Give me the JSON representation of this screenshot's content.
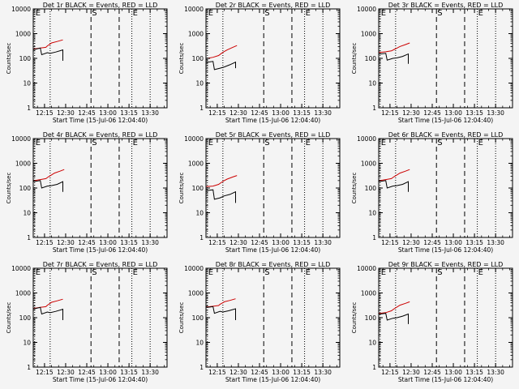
{
  "chart_data": [
    {
      "type": "line",
      "title": "Det 1r BLACK = Events, RED = LLD",
      "xlabel": "Start Time (15-Jul-06 12:04:40)",
      "ylabel": "Counts/sec",
      "xlim": [
        "12:07",
        "13:42"
      ],
      "ylim": [
        1,
        10000
      ],
      "yscale": "log",
      "xticks": [
        "12:15",
        "12:30",
        "12:45",
        "13:00",
        "13:15",
        "13:30"
      ],
      "yticks": [
        "1",
        "10",
        "100",
        "1000",
        "10000"
      ],
      "markers": [
        {
          "label": "E",
          "time": "12:08",
          "style": "dotted"
        },
        {
          "label": "",
          "time": "12:19",
          "style": "dotted"
        },
        {
          "label": "S",
          "time": "12:48",
          "style": "dashed"
        },
        {
          "label": "",
          "time": "13:08",
          "style": "dashed"
        },
        {
          "label": "E",
          "time": "13:17",
          "style": "dotted"
        },
        {
          "label": "",
          "time": "13:30",
          "style": "dotted"
        }
      ],
      "series": [
        {
          "color": "#cc0000",
          "x": [
            "12:04",
            "12:08",
            "12:12",
            "12:16",
            "12:17",
            "12:19",
            "12:20",
            "12:24",
            "12:28"
          ],
          "y": [
            250,
            240,
            260,
            280,
            320,
            380,
            420,
            480,
            560
          ]
        },
        {
          "color": "#000000",
          "x": [
            "12:04",
            "12:08",
            "12:12",
            "12:13",
            "12:17",
            "12:19",
            "12:23",
            "12:28",
            "12:28"
          ],
          "y": [
            240,
            230,
            260,
            140,
            170,
            160,
            180,
            220,
            80
          ]
        }
      ]
    },
    {
      "type": "line",
      "title": "Det 2r BLACK = Events, RED = LLD",
      "xlabel": "Start Time (15-Jul-06 12:04:40)",
      "ylabel": "Counts/sec",
      "xlim": [
        "12:07",
        "13:42"
      ],
      "ylim": [
        1,
        10000
      ],
      "yscale": "log",
      "xticks": [
        "12:15",
        "12:30",
        "12:45",
        "13:00",
        "13:15",
        "13:30"
      ],
      "yticks": [
        "1",
        "10",
        "100",
        "1000",
        "10000"
      ],
      "markers": [
        {
          "label": "E",
          "time": "12:08",
          "style": "dotted"
        },
        {
          "label": "",
          "time": "12:19",
          "style": "dotted"
        },
        {
          "label": "S",
          "time": "12:48",
          "style": "dashed"
        },
        {
          "label": "",
          "time": "13:08",
          "style": "dashed"
        },
        {
          "label": "E",
          "time": "13:17",
          "style": "dotted"
        },
        {
          "label": "",
          "time": "13:30",
          "style": "dotted"
        }
      ],
      "series": [
        {
          "color": "#cc0000",
          "x": [
            "12:04",
            "12:08",
            "12:12",
            "12:16",
            "12:18",
            "12:20",
            "12:22",
            "12:26",
            "12:29"
          ],
          "y": [
            100,
            100,
            110,
            130,
            160,
            190,
            220,
            280,
            330
          ]
        },
        {
          "color": "#000000",
          "x": [
            "12:04",
            "12:08",
            "12:12",
            "12:13",
            "12:17",
            "12:20",
            "12:24",
            "12:28",
            "12:28"
          ],
          "y": [
            70,
            70,
            75,
            35,
            40,
            45,
            55,
            70,
            40
          ]
        }
      ]
    },
    {
      "type": "line",
      "title": "Det 3r BLACK = Events, RED = LLD",
      "xlabel": "Start Time (15-Jul-06 12:04:40)",
      "ylabel": "Counts/sec",
      "xlim": [
        "12:07",
        "13:42"
      ],
      "ylim": [
        1,
        10000
      ],
      "yscale": "log",
      "xticks": [
        "12:15",
        "12:30",
        "12:45",
        "13:00",
        "13:15",
        "13:30"
      ],
      "yticks": [
        "1",
        "10",
        "100",
        "1000",
        "10000"
      ],
      "markers": [
        {
          "label": "E",
          "time": "12:08",
          "style": "dotted"
        },
        {
          "label": "",
          "time": "12:19",
          "style": "dotted"
        },
        {
          "label": "S",
          "time": "12:48",
          "style": "dashed"
        },
        {
          "label": "",
          "time": "13:08",
          "style": "dashed"
        },
        {
          "label": "E",
          "time": "13:17",
          "style": "dotted"
        },
        {
          "label": "",
          "time": "13:30",
          "style": "dotted"
        }
      ],
      "series": [
        {
          "color": "#cc0000",
          "x": [
            "12:04",
            "12:08",
            "12:12",
            "12:16",
            "12:18",
            "12:20",
            "12:22",
            "12:26",
            "12:29"
          ],
          "y": [
            180,
            175,
            185,
            200,
            230,
            260,
            300,
            360,
            420
          ]
        },
        {
          "color": "#000000",
          "x": [
            "12:04",
            "12:08",
            "12:12",
            "12:13",
            "12:17",
            "12:20",
            "12:24",
            "12:28",
            "12:28"
          ],
          "y": [
            150,
            150,
            160,
            85,
            100,
            105,
            120,
            150,
            60
          ]
        }
      ]
    },
    {
      "type": "line",
      "title": "Det 4r BLACK = Events, RED = LLD",
      "xlabel": "Start Time (15-Jul-06 12:04:40)",
      "ylabel": "Counts/sec",
      "xlim": [
        "12:07",
        "13:42"
      ],
      "ylim": [
        1,
        10000
      ],
      "yscale": "log",
      "xticks": [
        "12:15",
        "12:30",
        "12:45",
        "13:00",
        "13:15",
        "13:30"
      ],
      "yticks": [
        "1",
        "10",
        "100",
        "1000",
        "10000"
      ],
      "markers": [
        {
          "label": "E",
          "time": "12:08",
          "style": "dotted"
        },
        {
          "label": "",
          "time": "12:19",
          "style": "dotted"
        },
        {
          "label": "S",
          "time": "12:48",
          "style": "dashed"
        },
        {
          "label": "",
          "time": "13:08",
          "style": "dashed"
        },
        {
          "label": "E",
          "time": "13:17",
          "style": "dotted"
        },
        {
          "label": "",
          "time": "13:30",
          "style": "dotted"
        }
      ],
      "series": [
        {
          "color": "#cc0000",
          "x": [
            "12:04",
            "12:08",
            "12:12",
            "12:16",
            "12:18",
            "12:20",
            "12:22",
            "12:26",
            "12:29"
          ],
          "y": [
            210,
            200,
            220,
            240,
            290,
            340,
            400,
            480,
            560
          ]
        },
        {
          "color": "#000000",
          "x": [
            "12:04",
            "12:08",
            "12:12",
            "12:13",
            "12:17",
            "12:20",
            "12:24",
            "12:28",
            "12:28"
          ],
          "y": [
            190,
            185,
            200,
            100,
            120,
            125,
            140,
            180,
            70
          ]
        }
      ]
    },
    {
      "type": "line",
      "title": "Det 5r BLACK = Events, RED = LLD",
      "xlabel": "Start Time (15-Jul-06 12:04:40)",
      "ylabel": "Counts/sec",
      "xlim": [
        "12:07",
        "13:42"
      ],
      "ylim": [
        1,
        10000
      ],
      "yscale": "log",
      "xticks": [
        "12:15",
        "12:30",
        "12:45",
        "13:00",
        "13:15",
        "13:30"
      ],
      "yticks": [
        "1",
        "10",
        "100",
        "1000",
        "10000"
      ],
      "markers": [
        {
          "label": "E",
          "time": "12:08",
          "style": "dotted"
        },
        {
          "label": "",
          "time": "12:19",
          "style": "dotted"
        },
        {
          "label": "S",
          "time": "12:48",
          "style": "dashed"
        },
        {
          "label": "",
          "time": "13:08",
          "style": "dashed"
        },
        {
          "label": "E",
          "time": "13:17",
          "style": "dotted"
        },
        {
          "label": "",
          "time": "13:30",
          "style": "dotted"
        }
      ],
      "series": [
        {
          "color": "#cc0000",
          "x": [
            "12:04",
            "12:08",
            "12:12",
            "12:16",
            "12:18",
            "12:20",
            "12:22",
            "12:26",
            "12:29"
          ],
          "y": [
            115,
            115,
            120,
            140,
            170,
            200,
            230,
            280,
            320
          ]
        },
        {
          "color": "#000000",
          "x": [
            "12:04",
            "12:08",
            "12:12",
            "12:13",
            "12:17",
            "12:20",
            "12:24",
            "12:28",
            "12:28"
          ],
          "y": [
            80,
            80,
            85,
            35,
            40,
            48,
            55,
            70,
            25
          ]
        }
      ]
    },
    {
      "type": "line",
      "title": "Det 6r BLACK = Events, RED = LLD",
      "xlabel": "Start Time (15-Jul-06 12:04:40)",
      "ylabel": "Counts/sec",
      "xlim": [
        "12:07",
        "13:42"
      ],
      "ylim": [
        1,
        10000
      ],
      "yscale": "log",
      "xticks": [
        "12:15",
        "12:30",
        "12:45",
        "13:00",
        "13:15",
        "13:30"
      ],
      "yticks": [
        "1",
        "10",
        "100",
        "1000",
        "10000"
      ],
      "markers": [
        {
          "label": "E",
          "time": "12:08",
          "style": "dotted"
        },
        {
          "label": "",
          "time": "12:19",
          "style": "dotted"
        },
        {
          "label": "S",
          "time": "12:48",
          "style": "dashed"
        },
        {
          "label": "",
          "time": "13:08",
          "style": "dashed"
        },
        {
          "label": "E",
          "time": "13:17",
          "style": "dotted"
        },
        {
          "label": "",
          "time": "13:30",
          "style": "dotted"
        }
      ],
      "series": [
        {
          "color": "#cc0000",
          "x": [
            "12:04",
            "12:08",
            "12:12",
            "12:16",
            "12:18",
            "12:20",
            "12:22",
            "12:26",
            "12:29"
          ],
          "y": [
            210,
            200,
            220,
            240,
            290,
            340,
            400,
            480,
            560
          ]
        },
        {
          "color": "#000000",
          "x": [
            "12:04",
            "12:08",
            "12:12",
            "12:13",
            "12:17",
            "12:20",
            "12:24",
            "12:28",
            "12:28"
          ],
          "y": [
            190,
            185,
            200,
            100,
            120,
            125,
            140,
            180,
            70
          ]
        }
      ]
    },
    {
      "type": "line",
      "title": "Det 7r BLACK = Events, RED = LLD",
      "xlabel": "Start Time (15-Jul-06 12:04:40)",
      "ylabel": "Counts/sec",
      "xlim": [
        "12:07",
        "13:42"
      ],
      "ylim": [
        1,
        10000
      ],
      "yscale": "log",
      "xticks": [
        "12:15",
        "12:30",
        "12:45",
        "13:00",
        "13:15",
        "13:30"
      ],
      "yticks": [
        "1",
        "10",
        "100",
        "1000",
        "10000"
      ],
      "markers": [
        {
          "label": "E",
          "time": "12:08",
          "style": "dotted"
        },
        {
          "label": "",
          "time": "12:19",
          "style": "dotted"
        },
        {
          "label": "S",
          "time": "12:48",
          "style": "dashed"
        },
        {
          "label": "",
          "time": "13:08",
          "style": "dashed"
        },
        {
          "label": "E",
          "time": "13:17",
          "style": "dotted"
        },
        {
          "label": "",
          "time": "13:30",
          "style": "dotted"
        }
      ],
      "series": [
        {
          "color": "#cc0000",
          "x": [
            "12:04",
            "12:08",
            "12:12",
            "12:16",
            "12:17",
            "12:19",
            "12:20",
            "12:24",
            "12:28"
          ],
          "y": [
            250,
            240,
            260,
            280,
            320,
            380,
            420,
            480,
            560
          ]
        },
        {
          "color": "#000000",
          "x": [
            "12:04",
            "12:08",
            "12:12",
            "12:13",
            "12:17",
            "12:19",
            "12:23",
            "12:28",
            "12:28"
          ],
          "y": [
            240,
            230,
            260,
            140,
            170,
            160,
            180,
            220,
            80
          ]
        }
      ]
    },
    {
      "type": "line",
      "title": "Det 8r BLACK = Events, RED = LLD",
      "xlabel": "Start Time (15-Jul-06 12:04:40)",
      "ylabel": "Counts/sec",
      "xlim": [
        "12:07",
        "13:42"
      ],
      "ylim": [
        1,
        10000
      ],
      "yscale": "log",
      "xticks": [
        "12:15",
        "12:30",
        "12:45",
        "13:00",
        "13:15",
        "13:30"
      ],
      "yticks": [
        "1",
        "10",
        "100",
        "1000",
        "10000"
      ],
      "markers": [
        {
          "label": "E",
          "time": "12:08",
          "style": "dotted"
        },
        {
          "label": "",
          "time": "12:19",
          "style": "dotted"
        },
        {
          "label": "S",
          "time": "12:48",
          "style": "dashed"
        },
        {
          "label": "",
          "time": "13:08",
          "style": "dashed"
        },
        {
          "label": "E",
          "time": "13:17",
          "style": "dotted"
        },
        {
          "label": "",
          "time": "13:30",
          "style": "dotted"
        }
      ],
      "series": [
        {
          "color": "#cc0000",
          "x": [
            "12:04",
            "12:08",
            "12:12",
            "12:16",
            "12:17",
            "12:19",
            "12:20",
            "12:24",
            "12:28"
          ],
          "y": [
            280,
            270,
            290,
            310,
            350,
            400,
            440,
            500,
            580
          ]
        },
        {
          "color": "#000000",
          "x": [
            "12:04",
            "12:08",
            "12:12",
            "12:13",
            "12:17",
            "12:19",
            "12:23",
            "12:28",
            "12:28"
          ],
          "y": [
            270,
            260,
            280,
            150,
            180,
            170,
            190,
            230,
            80
          ]
        }
      ]
    },
    {
      "type": "line",
      "title": "Det 9r BLACK = Events, RED = LLD",
      "xlabel": "Start Time (15-Jul-06 12:04:40)",
      "ylabel": "Counts/sec",
      "xlim": [
        "12:07",
        "13:42"
      ],
      "ylim": [
        1,
        10000
      ],
      "yscale": "log",
      "xticks": [
        "12:15",
        "12:30",
        "12:45",
        "13:00",
        "13:15",
        "13:30"
      ],
      "yticks": [
        "1",
        "10",
        "100",
        "1000",
        "10000"
      ],
      "markers": [
        {
          "label": "E",
          "time": "12:08",
          "style": "dotted"
        },
        {
          "label": "",
          "time": "12:19",
          "style": "dotted"
        },
        {
          "label": "S",
          "time": "12:48",
          "style": "dashed"
        },
        {
          "label": "",
          "time": "13:08",
          "style": "dashed"
        },
        {
          "label": "E",
          "time": "13:17",
          "style": "dotted"
        },
        {
          "label": "",
          "time": "13:30",
          "style": "dotted"
        }
      ],
      "series": [
        {
          "color": "#cc0000",
          "x": [
            "12:04",
            "12:08",
            "12:12",
            "12:16",
            "12:18",
            "12:20",
            "12:22",
            "12:26",
            "12:29"
          ],
          "y": [
            150,
            150,
            160,
            190,
            230,
            270,
            320,
            380,
            440
          ]
        },
        {
          "color": "#000000",
          "x": [
            "12:04",
            "12:08",
            "12:12",
            "12:13",
            "12:17",
            "12:20",
            "12:24",
            "12:28",
            "12:28"
          ],
          "y": [
            140,
            140,
            150,
            80,
            95,
            100,
            115,
            140,
            55
          ]
        }
      ]
    }
  ]
}
